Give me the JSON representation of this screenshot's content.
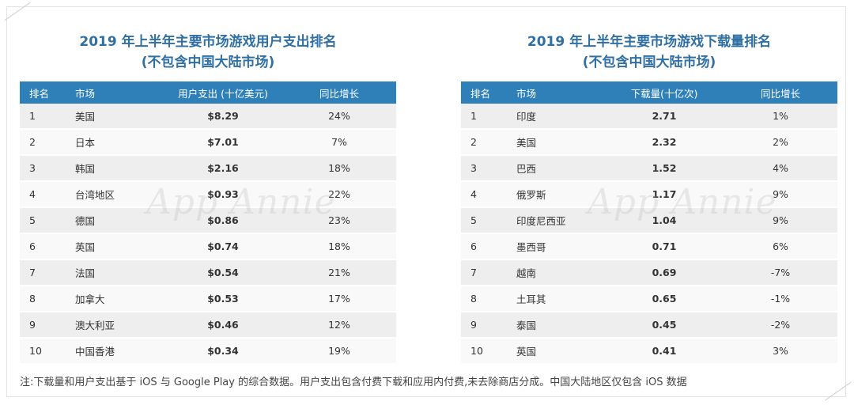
{
  "left_panel": {
    "title_line1": "2019 年上半年主要市场游戏用户支出排名",
    "title_line2": "(不包含中国大陆市场)",
    "headers": [
      "排名",
      "市场",
      "用户支出 (十亿美元)",
      "同比增长"
    ],
    "rows": [
      [
        "1",
        "美国",
        "$8.29",
        "24%"
      ],
      [
        "2",
        "日本",
        "$7.01",
        "7%"
      ],
      [
        "3",
        "韩国",
        "$2.16",
        "18%"
      ],
      [
        "4",
        "台湾地区",
        "$0.93",
        "22%"
      ],
      [
        "5",
        "德国",
        "$0.86",
        "23%"
      ],
      [
        "6",
        "英国",
        "$0.74",
        "18%"
      ],
      [
        "7",
        "法国",
        "$0.54",
        "21%"
      ],
      [
        "8",
        "加拿大",
        "$0.53",
        "17%"
      ],
      [
        "9",
        "澳大利亚",
        "$0.46",
        "12%"
      ],
      [
        "10",
        "中国香港",
        "$0.34",
        "19%"
      ]
    ]
  },
  "right_panel": {
    "title_line1": "2019 年上半年主要市场游戏下载量排名",
    "title_line2": "(不包含中国大陆市场)",
    "headers": [
      "排名",
      "市场",
      "下载量(十亿次)",
      "同比增长"
    ],
    "rows": [
      [
        "1",
        "印度",
        "2.71",
        "1%"
      ],
      [
        "2",
        "美国",
        "2.32",
        "2%"
      ],
      [
        "3",
        "巴西",
        "1.52",
        "4%"
      ],
      [
        "4",
        "俄罗斯",
        "1.17",
        "9%"
      ],
      [
        "5",
        "印度尼西亚",
        "1.04",
        "9%"
      ],
      [
        "6",
        "墨西哥",
        "0.71",
        "6%"
      ],
      [
        "7",
        "越南",
        "0.69",
        "-7%"
      ],
      [
        "8",
        "土耳其",
        "0.65",
        "-1%"
      ],
      [
        "9",
        "泰国",
        "0.45",
        "-2%"
      ],
      [
        "10",
        "英国",
        "0.41",
        "3%"
      ]
    ]
  },
  "watermark": "App Annie",
  "footnote": "注:下载量和用户支出基于 iOS 与 Google Play 的综合数据。用户支出包含付费下载和应用内付费,未去除商店分成。中国大陆地区仅包含 iOS 数据",
  "colors": {
    "title": "#2f6fa3",
    "header_bg": "#2f80b9",
    "row_odd": "#eeeeee",
    "row_even": "#f9f9f9"
  }
}
